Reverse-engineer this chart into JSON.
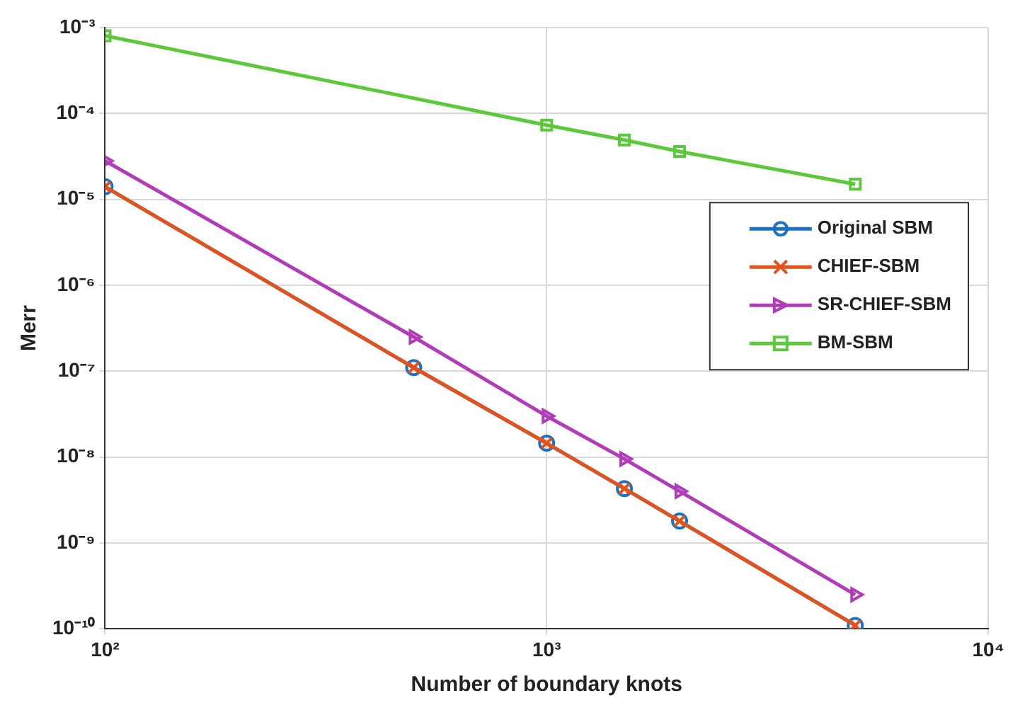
{
  "chart_data": {
    "type": "line",
    "xlabel": "Number of boundary knots",
    "ylabel": "Merr",
    "log": "xy",
    "grid": true,
    "legend": "right",
    "line_style": "solid",
    "x": [
      100,
      500,
      1000,
      1500,
      2000,
      5000
    ],
    "xlim": [
      100,
      10000
    ],
    "xticks": [
      {
        "value": 100,
        "label": "10²"
      },
      {
        "value": 1000,
        "label": "10³"
      },
      {
        "value": 10000,
        "label": "10⁴"
      }
    ],
    "ylim": [
      1e-10,
      0.001
    ],
    "yticks": [
      {
        "value": 1e-10,
        "label": "10⁻¹⁰"
      },
      {
        "value": 1e-09,
        "label": "10⁻⁹"
      },
      {
        "value": 1e-08,
        "label": "10⁻⁸"
      },
      {
        "value": 1e-07,
        "label": "10⁻⁷"
      },
      {
        "value": 1e-06,
        "label": "10⁻⁶"
      },
      {
        "value": 1e-05,
        "label": "10⁻⁵"
      },
      {
        "value": 0.0001,
        "label": "10⁻⁴"
      },
      {
        "value": 0.001,
        "label": "10⁻³"
      }
    ],
    "series": [
      {
        "name": "Original SBM",
        "color": "#1f72c0",
        "marker": "circle",
        "values": [
          1.4e-05,
          1.1e-07,
          1.45e-08,
          4.3e-09,
          1.8e-09,
          1.1e-10
        ]
      },
      {
        "name": "CHIEF-SBM",
        "color": "#e4521c",
        "marker": "cross",
        "values": [
          1.4e-05,
          1.1e-07,
          1.45e-08,
          4.3e-09,
          1.8e-09,
          1.1e-10
        ]
      },
      {
        "name": "SR-CHIEF-SBM",
        "color": "#b03cb8",
        "marker": "triangle",
        "values": [
          2.8e-05,
          2.5e-07,
          3e-08,
          9.5e-09,
          4e-09,
          2.5e-10
        ]
      },
      {
        "name": "BM-SBM",
        "color": "#5cc83c",
        "marker": "square",
        "x": [
          100,
          1000,
          1500,
          2000,
          5000
        ],
        "values": [
          0.0008,
          7.3e-05,
          4.9e-05,
          3.6e-05,
          1.5e-05
        ]
      }
    ]
  }
}
